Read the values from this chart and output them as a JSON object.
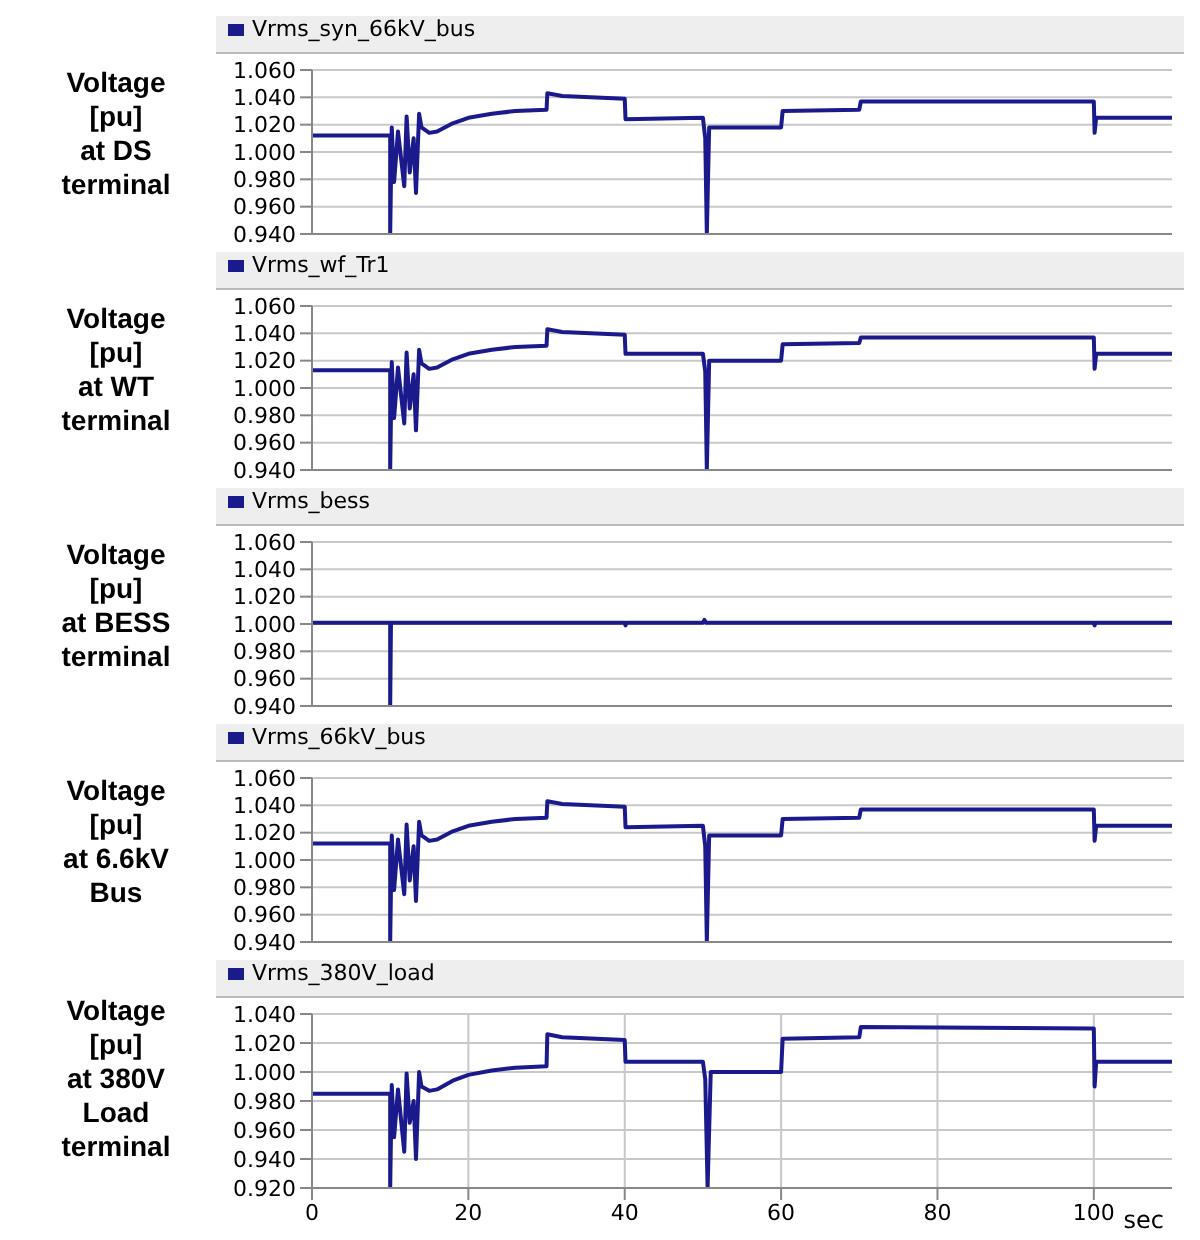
{
  "chart_data": [
    {
      "type": "line",
      "ylabel": "Voltage\n[pu]\nat DS\nterminal",
      "legend": "top left",
      "grid": true,
      "tick_labels": "y",
      "xlim": [
        0,
        110
      ],
      "xticks": [
        0,
        20,
        40,
        60,
        80,
        100
      ],
      "ylim": [
        0.94,
        1.06
      ],
      "yticks": [
        {
          "value": 0.94,
          "label": "0.940"
        },
        {
          "value": 0.96,
          "label": "0.960"
        },
        {
          "value": 0.98,
          "label": "0.980"
        },
        {
          "value": 1.0,
          "label": "1.000"
        },
        {
          "value": 1.02,
          "label": "1.020"
        },
        {
          "value": 1.04,
          "label": "1.040"
        },
        {
          "value": 1.06,
          "label": "1.060"
        }
      ],
      "series": [
        {
          "name": "Vrms_syn_66kV_bus",
          "color": "#1a1a8c",
          "x": [
            0,
            10,
            10,
            10.2,
            10.5,
            11,
            11.8,
            12.1,
            12.5,
            13,
            13.3,
            13.7,
            14,
            15,
            16,
            18,
            20,
            23,
            26,
            30,
            30.1,
            32,
            40,
            40.1,
            50,
            50.3,
            50.5,
            50.8,
            60,
            60.2,
            70,
            70.2,
            100,
            100.1,
            100.3,
            110
          ],
          "values": [
            1.012,
            1.012,
            0.94,
            1.018,
            0.978,
            1.015,
            0.975,
            1.026,
            0.985,
            1.01,
            0.97,
            1.028,
            1.018,
            1.014,
            1.015,
            1.021,
            1.025,
            1.028,
            1.03,
            1.031,
            1.043,
            1.041,
            1.039,
            1.024,
            1.025,
            1.01,
            0.94,
            1.018,
            1.018,
            1.03,
            1.031,
            1.037,
            1.037,
            1.014,
            1.025,
            1.025
          ]
        }
      ]
    },
    {
      "type": "line",
      "ylabel": "Voltage\n[pu]\nat WT\nterminal",
      "legend": "top left",
      "grid": true,
      "tick_labels": "y",
      "xlim": [
        0,
        110
      ],
      "xticks": [
        0,
        20,
        40,
        60,
        80,
        100
      ],
      "ylim": [
        0.94,
        1.06
      ],
      "yticks": [
        {
          "value": 0.94,
          "label": "0.940"
        },
        {
          "value": 0.96,
          "label": "0.960"
        },
        {
          "value": 0.98,
          "label": "0.980"
        },
        {
          "value": 1.0,
          "label": "1.000"
        },
        {
          "value": 1.02,
          "label": "1.020"
        },
        {
          "value": 1.04,
          "label": "1.040"
        },
        {
          "value": 1.06,
          "label": "1.060"
        }
      ],
      "series": [
        {
          "name": "Vrms_wf_Tr1",
          "color": "#1a1a8c",
          "x": [
            0,
            10,
            10,
            10.2,
            10.5,
            11,
            11.8,
            12.1,
            12.5,
            13,
            13.3,
            13.7,
            14,
            15,
            16,
            18,
            20,
            23,
            26,
            30,
            30.1,
            32,
            40,
            40.1,
            50,
            50.3,
            50.5,
            50.8,
            60,
            60.2,
            70,
            70.2,
            100,
            100.1,
            100.3,
            110
          ],
          "values": [
            1.013,
            1.013,
            0.94,
            1.019,
            0.978,
            1.015,
            0.974,
            1.026,
            0.985,
            1.01,
            0.969,
            1.028,
            1.018,
            1.014,
            1.015,
            1.021,
            1.025,
            1.028,
            1.03,
            1.031,
            1.043,
            1.041,
            1.039,
            1.025,
            1.025,
            1.012,
            0.94,
            1.02,
            1.02,
            1.032,
            1.033,
            1.037,
            1.037,
            1.014,
            1.025,
            1.025
          ]
        }
      ]
    },
    {
      "type": "line",
      "ylabel": "Voltage\n[pu]\nat BESS\nterminal",
      "legend": "top left",
      "grid": true,
      "tick_labels": "y",
      "xlim": [
        0,
        110
      ],
      "xticks": [
        0,
        20,
        40,
        60,
        80,
        100
      ],
      "ylim": [
        0.94,
        1.06
      ],
      "yticks": [
        {
          "value": 0.94,
          "label": "0.940"
        },
        {
          "value": 0.96,
          "label": "0.960"
        },
        {
          "value": 0.98,
          "label": "0.980"
        },
        {
          "value": 1.0,
          "label": "1.000"
        },
        {
          "value": 1.02,
          "label": "1.020"
        },
        {
          "value": 1.04,
          "label": "1.040"
        },
        {
          "value": 1.06,
          "label": "1.060"
        }
      ],
      "series": [
        {
          "name": "Vrms_bess",
          "color": "#1a1a8c",
          "x": [
            0,
            10,
            10,
            10.1,
            40,
            40.1,
            40.2,
            50,
            50.2,
            50.4,
            100,
            100.1,
            100.2,
            110
          ],
          "values": [
            1.001,
            1.001,
            0.94,
            1.001,
            1.001,
            0.999,
            1.001,
            1.001,
            1.003,
            1.001,
            1.001,
            0.999,
            1.001,
            1.001
          ]
        }
      ]
    },
    {
      "type": "line",
      "ylabel": "Voltage\n[pu]\nat 6.6kV\nBus",
      "legend": "top left",
      "grid": true,
      "tick_labels": "y",
      "xlim": [
        0,
        110
      ],
      "xticks": [
        0,
        20,
        40,
        60,
        80,
        100
      ],
      "ylim": [
        0.94,
        1.06
      ],
      "yticks": [
        {
          "value": 0.94,
          "label": "0.940"
        },
        {
          "value": 0.96,
          "label": "0.960"
        },
        {
          "value": 0.98,
          "label": "0.980"
        },
        {
          "value": 1.0,
          "label": "1.000"
        },
        {
          "value": 1.02,
          "label": "1.020"
        },
        {
          "value": 1.04,
          "label": "1.040"
        },
        {
          "value": 1.06,
          "label": "1.060"
        }
      ],
      "series": [
        {
          "name": "Vrms_66kV_bus",
          "color": "#1a1a8c",
          "x": [
            0,
            10,
            10,
            10.2,
            10.5,
            11,
            11.8,
            12.1,
            12.5,
            13,
            13.3,
            13.7,
            14,
            15,
            16,
            18,
            20,
            23,
            26,
            30,
            30.1,
            32,
            40,
            40.1,
            50,
            50.3,
            50.5,
            50.8,
            60,
            60.2,
            70,
            70.2,
            100,
            100.1,
            100.3,
            110
          ],
          "values": [
            1.012,
            1.012,
            0.94,
            1.018,
            0.978,
            1.015,
            0.975,
            1.026,
            0.985,
            1.01,
            0.97,
            1.028,
            1.018,
            1.014,
            1.015,
            1.021,
            1.025,
            1.028,
            1.03,
            1.031,
            1.043,
            1.041,
            1.039,
            1.024,
            1.025,
            1.01,
            0.94,
            1.018,
            1.018,
            1.03,
            1.031,
            1.037,
            1.037,
            1.014,
            1.025,
            1.025
          ]
        }
      ]
    },
    {
      "type": "line",
      "ylabel": "Voltage\n[pu]\nat 380V\nLoad\nterminal",
      "xlabel": "sec",
      "legend": "top left",
      "grid": true,
      "xlim": [
        0,
        110
      ],
      "xticks": [
        0,
        20,
        40,
        60,
        80,
        100
      ],
      "ylim": [
        0.92,
        1.04
      ],
      "yticks": [
        {
          "value": 0.92,
          "label": "0.920"
        },
        {
          "value": 0.94,
          "label": "0.940"
        },
        {
          "value": 0.96,
          "label": "0.960"
        },
        {
          "value": 0.98,
          "label": "0.980"
        },
        {
          "value": 1.0,
          "label": "1.000"
        },
        {
          "value": 1.02,
          "label": "1.020"
        },
        {
          "value": 1.04,
          "label": "1.040"
        }
      ],
      "series": [
        {
          "name": "Vrms_380V_load",
          "color": "#1a1a8c",
          "x": [
            0,
            10,
            10,
            10.2,
            10.5,
            11,
            11.8,
            12.1,
            12.5,
            13,
            13.3,
            13.7,
            14,
            15,
            16,
            18,
            20,
            23,
            26,
            30,
            30.1,
            32,
            40,
            40.1,
            50,
            50.3,
            50.6,
            51,
            60,
            60.2,
            70,
            70.2,
            100,
            100.1,
            100.3,
            110
          ],
          "values": [
            0.985,
            0.985,
            0.92,
            0.991,
            0.955,
            0.988,
            0.945,
            0.999,
            0.965,
            0.98,
            0.94,
            1.0,
            0.99,
            0.987,
            0.988,
            0.994,
            0.998,
            1.001,
            1.003,
            1.004,
            1.026,
            1.024,
            1.022,
            1.007,
            1.007,
            0.995,
            0.92,
            1.0,
            1.0,
            1.023,
            1.024,
            1.031,
            1.03,
            0.99,
            1.007,
            1.007
          ]
        }
      ]
    }
  ]
}
